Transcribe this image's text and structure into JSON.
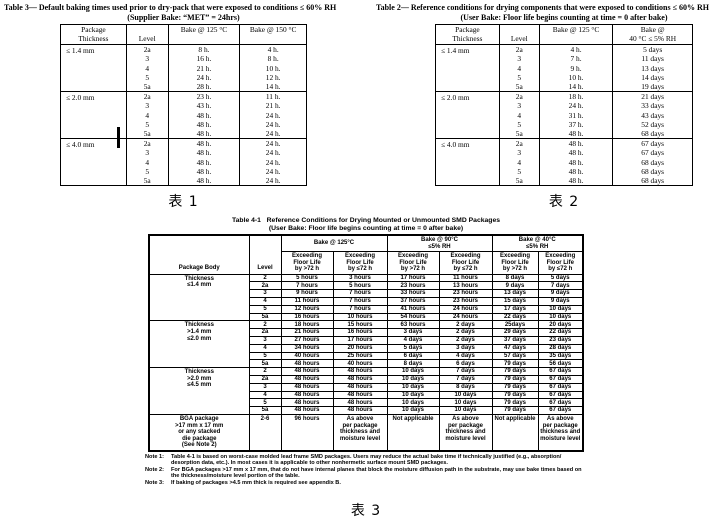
{
  "colors": {
    "paper": "#ffffff",
    "ink": "#000000"
  },
  "table_supplier": {
    "title": "Table 3— Default baking times used prior to dry-pack that were exposed to conditions ≤ 60% RH",
    "subtitle": "(Supplier Bake:  “MET” = 24hrs)",
    "caption": "表 1",
    "columns": [
      "Package\nThickness",
      "Level",
      "Bake @ 125 °C",
      "Bake @ 150 °C"
    ],
    "groups": [
      {
        "thickness": "≤ 1.4 mm",
        "rows": [
          [
            "2a",
            "8 h.",
            "4 h."
          ],
          [
            "3",
            "16 h.",
            "8 h."
          ],
          [
            "4",
            "21 h.",
            "10 h."
          ],
          [
            "5",
            "24 h.",
            "12 h."
          ],
          [
            "5a",
            "28 h.",
            "14 h."
          ]
        ]
      },
      {
        "thickness": "≤ 2.0 mm",
        "rows": [
          [
            "2a",
            "23 h.",
            "11 h."
          ],
          [
            "3",
            "43 h.",
            "21 h."
          ],
          [
            "4",
            "48 h.",
            "24 h."
          ],
          [
            "5",
            "48 h.",
            "24 h."
          ],
          [
            "5a",
            "48 h.",
            "24 h."
          ]
        ]
      },
      {
        "thickness": "≤ 4.0 mm",
        "rows": [
          [
            "2a",
            "48 h.",
            "24 h."
          ],
          [
            "3",
            "48 h.",
            "24 h."
          ],
          [
            "4",
            "48 h.",
            "24 h."
          ],
          [
            "5",
            "48 h.",
            "24 h."
          ],
          [
            "5a",
            "48 h.",
            "24 h."
          ]
        ]
      }
    ]
  },
  "table_user": {
    "title": "Table 2— Reference conditions for drying components that were exposed to conditions ≤ 60% RH",
    "subtitle": "(User Bake: Floor life begins counting at time = 0 after bake)",
    "caption": "表 2",
    "columns": [
      "Package\nThickness",
      "Level",
      "Bake @ 125 °C",
      "Bake @\n40 °C ≤ 5% RH"
    ],
    "groups": [
      {
        "thickness": "≤ 1.4 mm",
        "rows": [
          [
            "2a",
            "4 h.",
            "5 days"
          ],
          [
            "3",
            "7 h.",
            "11 days"
          ],
          [
            "4",
            "9 h.",
            "13 days"
          ],
          [
            "5",
            "10 h.",
            "14 days"
          ],
          [
            "5a",
            "14 h.",
            "19 days"
          ]
        ]
      },
      {
        "thickness": "≤ 2.0 mm",
        "rows": [
          [
            "2a",
            "18 h.",
            "21 days"
          ],
          [
            "3",
            "24 h.",
            "33 days"
          ],
          [
            "4",
            "31 h.",
            "43 days"
          ],
          [
            "5",
            "37 h.",
            "52 days"
          ],
          [
            "5a",
            "48 h.",
            "68 days"
          ]
        ]
      },
      {
        "thickness": "≤ 4.0 mm",
        "rows": [
          [
            "2a",
            "48 h.",
            "67 days"
          ],
          [
            "3",
            "48 h.",
            "67 days"
          ],
          [
            "4",
            "48 h.",
            "68 days"
          ],
          [
            "5",
            "48 h.",
            "68 days"
          ],
          [
            "5a",
            "48 h.",
            "68 days"
          ]
        ]
      }
    ]
  },
  "table_smd": {
    "title_label": "Table 4-1",
    "title": "Reference Conditions for Drying Mounted or Unmounted SMD Packages",
    "subtitle": "(User Bake: Floor life begins counting at time = 0 after bake)",
    "caption": "表 3",
    "corner_columns": [
      "Package Body",
      "Level"
    ],
    "bake_groups": [
      {
        "label": "Bake @ 125°C",
        "rh": ""
      },
      {
        "label": "Bake @ 90°C",
        "rh": "≤5% RH"
      },
      {
        "label": "Bake @ 40°C",
        "rh": "≤5% RH"
      }
    ],
    "subcolumns": [
      "Exceeding\nFloor Life\nby >72 h",
      "Exceeding\nFloor Life\nby ≤72 h",
      "Exceeding\nFloor Life\nby >72 h",
      "Exceeding\nFloor Life\nby ≤72 h",
      "Exceeding\nFloor Life\nby >72 h",
      "Exceeding\nFloor Life\nby ≤72 h"
    ],
    "groups": [
      {
        "body": "Thickness\n≤1.4 mm",
        "rows": [
          {
            "level": "2",
            "values": [
              "5 hours",
              "3 hours",
              "17 hours",
              "11 hours",
              "8 days",
              "5 days"
            ]
          },
          {
            "level": "2a",
            "values": [
              "7 hours",
              "5 hours",
              "23 hours",
              "13 hours",
              "9 days",
              "7 days"
            ]
          },
          {
            "level": "3",
            "values": [
              "9 hours",
              "7 hours",
              "33 hours",
              "23 hours",
              "13 days",
              "9 days"
            ]
          },
          {
            "level": "4",
            "values": [
              "11 hours",
              "7 hours",
              "37 hours",
              "23 hours",
              "15 days",
              "9 days"
            ]
          },
          {
            "level": "5",
            "values": [
              "12 hours",
              "7 hours",
              "41 hours",
              "24 hours",
              "17 days",
              "10 days"
            ]
          },
          {
            "level": "5a",
            "values": [
              "16 hours",
              "10 hours",
              "54 hours",
              "24 hours",
              "22 days",
              "10 days"
            ]
          }
        ]
      },
      {
        "body": "Thickness\n>1.4 mm\n≤2.0 mm",
        "rows": [
          {
            "level": "2",
            "values": [
              "18 hours",
              "15 hours",
              "63 hours",
              "2 days",
              "25days",
              "20 days"
            ]
          },
          {
            "level": "2a",
            "values": [
              "21 hours",
              "16 hours",
              "3 days",
              "2 days",
              "29 days",
              "22 days"
            ]
          },
          {
            "level": "3",
            "values": [
              "27 hours",
              "17 hours",
              "4 days",
              "2 days",
              "37 days",
              "23 days"
            ]
          },
          {
            "level": "4",
            "values": [
              "34 hours",
              "20 hours",
              "5 days",
              "3 days",
              "47 days",
              "28 days"
            ]
          },
          {
            "level": "5",
            "values": [
              "40 hours",
              "25 hours",
              "6 days",
              "4 days",
              "57 days",
              "35 days"
            ]
          },
          {
            "level": "5a",
            "values": [
              "48 hours",
              "40 hours",
              "8 days",
              "6 days",
              "79 days",
              "56 days"
            ]
          }
        ]
      },
      {
        "body": "Thickness\n>2.0 mm\n≤4.5 mm",
        "rows": [
          {
            "level": "2",
            "values": [
              "48 hours",
              "48 hours",
              "10 days",
              "7 days",
              "79 days",
              "67 days"
            ]
          },
          {
            "level": "2a",
            "values": [
              "48 hours",
              "48 hours",
              "10 days",
              "7 days",
              "79 days",
              "67 days"
            ]
          },
          {
            "level": "3",
            "values": [
              "48 hours",
              "48 hours",
              "10 days",
              "8 days",
              "79 days",
              "67 days"
            ]
          },
          {
            "level": "4",
            "values": [
              "48 hours",
              "48 hours",
              "10 days",
              "10 days",
              "79 days",
              "67 days"
            ]
          },
          {
            "level": "5",
            "values": [
              "48 hours",
              "48 hours",
              "10 days",
              "10 days",
              "79 days",
              "67 days"
            ]
          },
          {
            "level": "5a",
            "values": [
              "48 hours",
              "48 hours",
              "10 days",
              "10 days",
              "79 days",
              "67 days"
            ]
          }
        ]
      },
      {
        "body": "BGA package\n>17 mm x 17 mm\nor any stacked\ndie package\n(See Note 2)",
        "rows": [
          {
            "level": "2-6",
            "values": [
              "96 hours",
              "As above\nper package\nthickness and\nmoisture level",
              "Not applicable",
              "As above\nper package\nthickness and\nmoisture level",
              "Not applicable",
              "As above\nper package\nthickness and\nmoisture level"
            ]
          }
        ]
      }
    ],
    "notes": [
      {
        "label": "Note 1:",
        "text": "Table 4-1 is based on worst-case molded lead frame SMD packages. Users may reduce the actual bake time if technically justified (e.g., absorption/ desorption data, etc.). In most cases it is applicable to other nonhermetic surface mount SMD packages."
      },
      {
        "label": "Note 2:",
        "text": "For BGA packages >17 mm x 17 mm, that do not have internal planes that block the moisture diffusion path in the substrate, may use bake times based on the thickness/moisture level portion of the table."
      },
      {
        "label": "Note 3:",
        "text": "If baking of packages >4.5 mm thick is required see appendix B."
      }
    ]
  }
}
